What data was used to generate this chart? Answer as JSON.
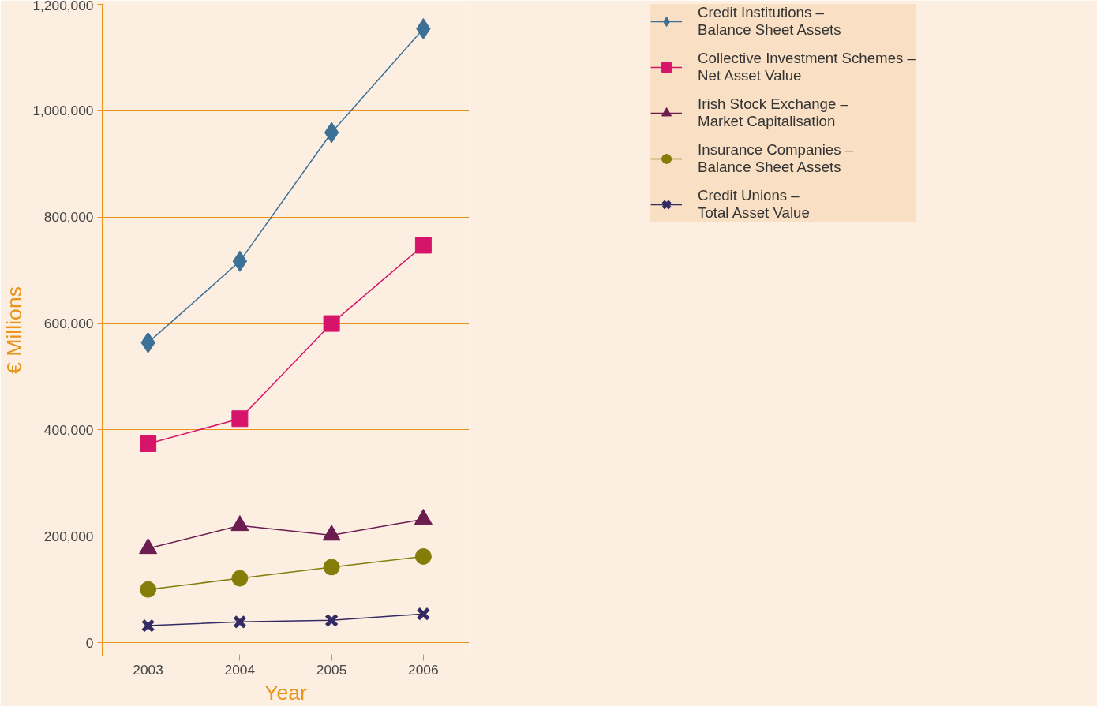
{
  "chart_data": {
    "type": "line",
    "xlabel": "Year",
    "ylabel": "€ Millions",
    "categories": [
      "2003",
      "2004",
      "2005",
      "2006"
    ],
    "ylim": [
      -25000,
      1200000
    ],
    "yticks": [
      0,
      {
        "value": 200000,
        "label": "200,000"
      },
      {
        "value": 400000,
        "label": "400,000"
      },
      {
        "value": 600000,
        "label": "600,000"
      },
      {
        "value": 800000,
        "label": "800,000"
      },
      {
        "value": 1000000,
        "label": "1,000,000"
      },
      {
        "value": 1200000,
        "label": "1,200,000"
      }
    ],
    "grid": "y",
    "legend": "right",
    "line_style": "solid",
    "series": [
      {
        "name": "Credit Institutions –\nBalance Sheet Assets",
        "color": "#3d7096",
        "marker": "diamond",
        "values": [
          564000,
          717000,
          959000,
          1154000
        ]
      },
      {
        "name": "Collective Investment Schemes –\nNet Asset Value",
        "color": "#d6156a",
        "marker": "square",
        "values": [
          374000,
          421000,
          600000,
          747000
        ]
      },
      {
        "name": "Irish Stock Exchange –\nMarket Capitalisation",
        "color": "#6b1d50",
        "marker": "triangle",
        "values": [
          177000,
          220000,
          202000,
          232000
        ]
      },
      {
        "name": "Insurance Companies –\nBalance Sheet Assets",
        "color": "#857d0a",
        "marker": "circle",
        "values": [
          100000,
          121000,
          142000,
          162000
        ]
      },
      {
        "name": "Credit Unions –\nTotal Asset Value",
        "color": "#342b63",
        "marker": "cross",
        "values": [
          32000,
          39000,
          42000,
          54000
        ]
      }
    ]
  }
}
